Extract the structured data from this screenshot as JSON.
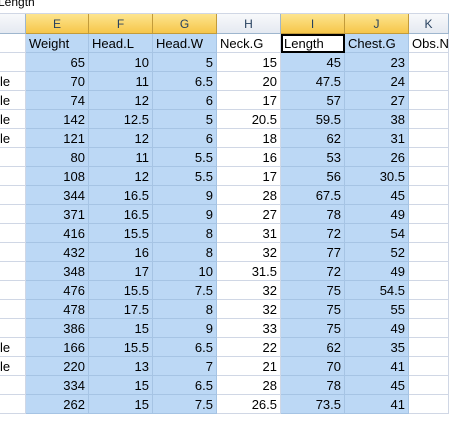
{
  "formula_bar": {
    "text": "Length"
  },
  "columns": {
    "E": "E",
    "F": "F",
    "G": "G",
    "H": "H",
    "I": "I",
    "J": "J",
    "K": "K"
  },
  "header_row": {
    "E": "Weight",
    "F": "Head.L",
    "G": "Head.W",
    "H": "Neck.G",
    "I": "Length",
    "J": "Chest.G",
    "K": "Obs.N"
  },
  "rows": [
    {
      "lead": "",
      "E": "65",
      "F": "10",
      "G": "5",
      "H": "15",
      "I": "45",
      "J": "23"
    },
    {
      "lead": "le",
      "E": "70",
      "F": "11",
      "G": "6.5",
      "H": "20",
      "I": "47.5",
      "J": "24"
    },
    {
      "lead": "le",
      "E": "74",
      "F": "12",
      "G": "6",
      "H": "17",
      "I": "57",
      "J": "27"
    },
    {
      "lead": "le",
      "E": "142",
      "F": "12.5",
      "G": "5",
      "H": "20.5",
      "I": "59.5",
      "J": "38"
    },
    {
      "lead": "le",
      "E": "121",
      "F": "12",
      "G": "6",
      "H": "18",
      "I": "62",
      "J": "31"
    },
    {
      "lead": "",
      "E": "80",
      "F": "11",
      "G": "5.5",
      "H": "16",
      "I": "53",
      "J": "26"
    },
    {
      "lead": "",
      "E": "108",
      "F": "12",
      "G": "5.5",
      "H": "17",
      "I": "56",
      "J": "30.5"
    },
    {
      "lead": "",
      "E": "344",
      "F": "16.5",
      "G": "9",
      "H": "28",
      "I": "67.5",
      "J": "45"
    },
    {
      "lead": "",
      "E": "371",
      "F": "16.5",
      "G": "9",
      "H": "27",
      "I": "78",
      "J": "49"
    },
    {
      "lead": "",
      "E": "416",
      "F": "15.5",
      "G": "8",
      "H": "31",
      "I": "72",
      "J": "54"
    },
    {
      "lead": "",
      "E": "432",
      "F": "16",
      "G": "8",
      "H": "32",
      "I": "77",
      "J": "52"
    },
    {
      "lead": "",
      "E": "348",
      "F": "17",
      "G": "10",
      "H": "31.5",
      "I": "72",
      "J": "49"
    },
    {
      "lead": "",
      "E": "476",
      "F": "15.5",
      "G": "7.5",
      "H": "32",
      "I": "75",
      "J": "54.5"
    },
    {
      "lead": "",
      "E": "478",
      "F": "17.5",
      "G": "8",
      "H": "32",
      "I": "75",
      "J": "55"
    },
    {
      "lead": "",
      "E": "386",
      "F": "15",
      "G": "9",
      "H": "33",
      "I": "75",
      "J": "49"
    },
    {
      "lead": "le",
      "E": "166",
      "F": "15.5",
      "G": "6.5",
      "H": "22",
      "I": "62",
      "J": "35"
    },
    {
      "lead": "le",
      "E": "220",
      "F": "13",
      "G": "7",
      "H": "21",
      "I": "70",
      "J": "41"
    },
    {
      "lead": "",
      "E": "334",
      "F": "15",
      "G": "6.5",
      "H": "28",
      "I": "78",
      "J": "45"
    },
    {
      "lead": "",
      "E": "262",
      "F": "15",
      "G": "7.5",
      "H": "26.5",
      "I": "73.5",
      "J": "41"
    }
  ],
  "colors": {
    "selection": "#bcd8f5",
    "selected_header": "#f6c64a",
    "gridline": "#d0d7e5"
  }
}
